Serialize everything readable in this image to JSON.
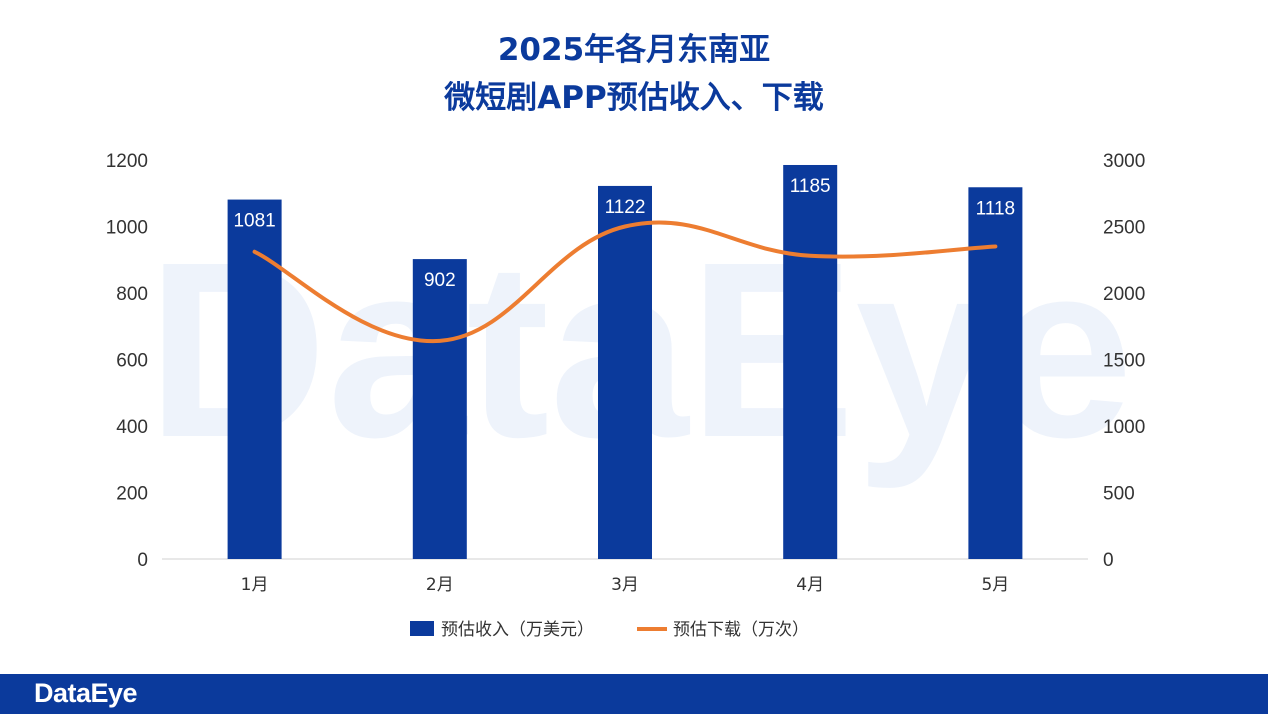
{
  "chart_data": {
    "type": "bar",
    "title_lines": [
      "2025年各月东南亚",
      "微短剧APP预估收入、下载"
    ],
    "categories": [
      "1月",
      "2月",
      "3月",
      "4月",
      "5月"
    ],
    "series": [
      {
        "name": "预估收入（万美元）",
        "type": "bar",
        "axis": "left",
        "color": "#0b3a9c",
        "values": [
          1081,
          902,
          1122,
          1185,
          1118
        ]
      },
      {
        "name": "预估下载（万次）",
        "type": "line",
        "axis": "right",
        "color": "#ed7d31",
        "smooth": true,
        "values": [
          2310,
          1640,
          2500,
          2280,
          2350
        ]
      }
    ],
    "left_axis": {
      "range": [
        0,
        1200
      ],
      "ticks": [
        0,
        200,
        400,
        600,
        800,
        1000,
        1200
      ]
    },
    "right_axis": {
      "range": [
        0,
        3000
      ],
      "ticks": [
        0,
        500,
        1000,
        1500,
        2000,
        2500,
        3000
      ]
    },
    "legend_position": "bottom",
    "watermark": "DataEye"
  },
  "footer": {
    "logo": "DataEye"
  }
}
